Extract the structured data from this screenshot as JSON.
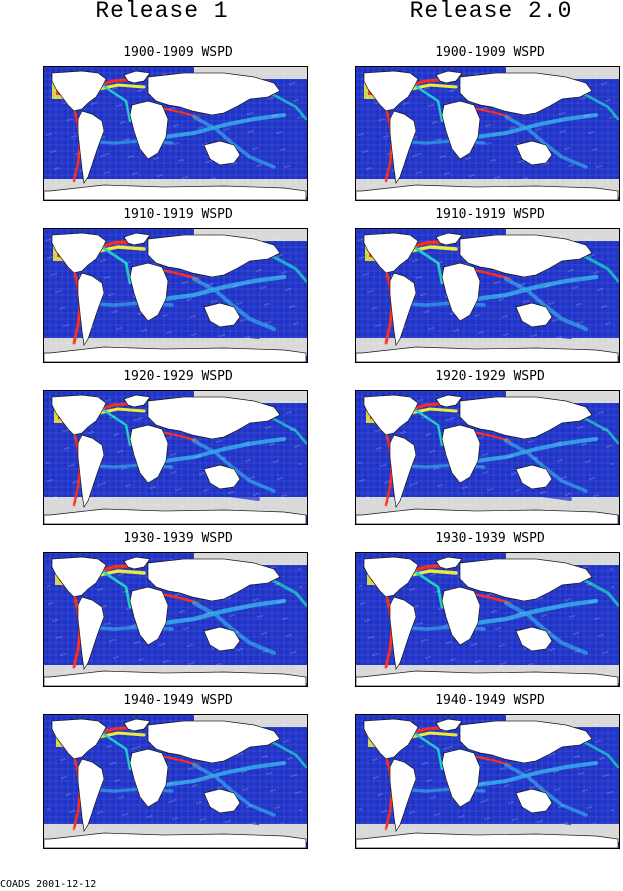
{
  "columns": {
    "left_title": "Release 1",
    "right_title": "Release 2.0"
  },
  "panels": [
    {
      "label": "1900-1909 WSPD"
    },
    {
      "label": "1910-1919 WSPD"
    },
    {
      "label": "1920-1929 WSPD"
    },
    {
      "label": "1930-1939 WSPD"
    },
    {
      "label": "1940-1949 WSPD"
    }
  ],
  "footer": "COADS 2001-12-12",
  "colors": {
    "no_data": "#d9d9d9",
    "low": "#1f33c8",
    "medium_low": "#2f9fe6",
    "medium": "#18d3c6",
    "high": "#f4f42a",
    "very_high": "#ff2a14",
    "land_outline": "#111111"
  }
}
